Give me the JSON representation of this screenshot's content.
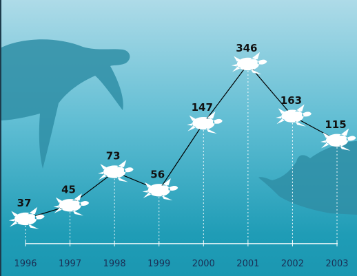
{
  "chart_data": {
    "type": "line",
    "categories": [
      "1996",
      "1997",
      "1998",
      "1999",
      "2000",
      "2001",
      "2002",
      "2003"
    ],
    "values": [
      37,
      45,
      73,
      56,
      147,
      346,
      163,
      115
    ],
    "color": "#000000",
    "marker_color": "#ffffff",
    "log_scale": true
  }
}
